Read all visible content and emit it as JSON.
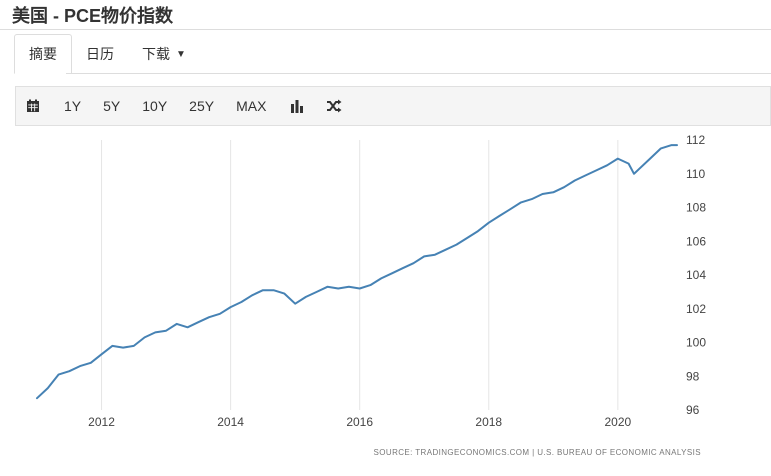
{
  "header": {
    "title": "美国 - PCE物价指数"
  },
  "tabs": [
    {
      "label": "摘要",
      "active": true
    },
    {
      "label": "日历",
      "active": false
    },
    {
      "label": "下载",
      "active": false,
      "dropdown": true
    }
  ],
  "toolbar": {
    "calendar_icon": "calendar-icon",
    "ranges": [
      "1Y",
      "5Y",
      "10Y",
      "25Y",
      "MAX"
    ],
    "bar_chart_icon": "bar-chart-icon",
    "shuffle_icon": "shuffle-icon"
  },
  "colors": {
    "line": "#4682b4",
    "grid": "#e5e5e5",
    "tick": "#444444",
    "source": "#777777"
  },
  "chart_data": {
    "type": "line",
    "title": "",
    "xlabel": "",
    "ylabel": "",
    "x_ticks": [
      "2012",
      "2014",
      "2016",
      "2018",
      "2020"
    ],
    "y_ticks": [
      96,
      98,
      100,
      102,
      104,
      106,
      108,
      110,
      112
    ],
    "xlim": [
      "2011-01",
      "2020-12"
    ],
    "ylim": [
      96,
      112
    ],
    "y_axis_side": "right",
    "grid": {
      "vertical": true,
      "horizontal": false
    },
    "legend": "none",
    "source": "SOURCE: TRADINGECONOMICS.COM | U.S. BUREAU OF ECONOMIC ANALYSIS",
    "series": [
      {
        "values": [
          [
            "2011-01",
            96.7
          ],
          [
            "2011-03",
            97.3
          ],
          [
            "2011-05",
            98.1
          ],
          [
            "2011-07",
            98.3
          ],
          [
            "2011-09",
            98.6
          ],
          [
            "2011-11",
            98.8
          ],
          [
            "2012-01",
            99.3
          ],
          [
            "2012-03",
            99.8
          ],
          [
            "2012-05",
            99.7
          ],
          [
            "2012-07",
            99.8
          ],
          [
            "2012-09",
            100.3
          ],
          [
            "2012-11",
            100.6
          ],
          [
            "2013-01",
            100.7
          ],
          [
            "2013-03",
            101.1
          ],
          [
            "2013-05",
            100.9
          ],
          [
            "2013-07",
            101.2
          ],
          [
            "2013-09",
            101.5
          ],
          [
            "2013-11",
            101.7
          ],
          [
            "2014-01",
            102.1
          ],
          [
            "2014-03",
            102.4
          ],
          [
            "2014-05",
            102.8
          ],
          [
            "2014-07",
            103.1
          ],
          [
            "2014-09",
            103.1
          ],
          [
            "2014-11",
            102.9
          ],
          [
            "2015-01",
            102.3
          ],
          [
            "2015-03",
            102.7
          ],
          [
            "2015-05",
            103.0
          ],
          [
            "2015-07",
            103.3
          ],
          [
            "2015-09",
            103.2
          ],
          [
            "2015-11",
            103.3
          ],
          [
            "2016-01",
            103.2
          ],
          [
            "2016-03",
            103.4
          ],
          [
            "2016-05",
            103.8
          ],
          [
            "2016-07",
            104.1
          ],
          [
            "2016-09",
            104.4
          ],
          [
            "2016-11",
            104.7
          ],
          [
            "2017-01",
            105.1
          ],
          [
            "2017-03",
            105.2
          ],
          [
            "2017-05",
            105.5
          ],
          [
            "2017-07",
            105.8
          ],
          [
            "2017-09",
            106.2
          ],
          [
            "2017-11",
            106.6
          ],
          [
            "2018-01",
            107.1
          ],
          [
            "2018-03",
            107.5
          ],
          [
            "2018-05",
            107.9
          ],
          [
            "2018-07",
            108.3
          ],
          [
            "2018-09",
            108.5
          ],
          [
            "2018-11",
            108.8
          ],
          [
            "2019-01",
            108.9
          ],
          [
            "2019-03",
            109.2
          ],
          [
            "2019-05",
            109.6
          ],
          [
            "2019-07",
            109.9
          ],
          [
            "2019-09",
            110.2
          ],
          [
            "2019-11",
            110.5
          ],
          [
            "2020-01",
            110.9
          ],
          [
            "2020-03",
            110.6
          ],
          [
            "2020-04",
            110.0
          ],
          [
            "2020-05",
            110.3
          ],
          [
            "2020-07",
            110.9
          ],
          [
            "2020-09",
            111.5
          ],
          [
            "2020-11",
            111.7
          ],
          [
            "2020-12",
            111.7
          ]
        ]
      }
    ]
  }
}
